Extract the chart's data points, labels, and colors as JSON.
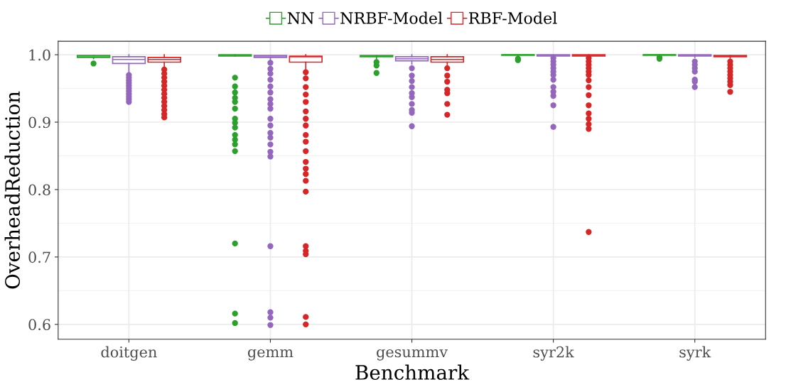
{
  "chart_data": {
    "type": "box",
    "xlabel": "Benchmark",
    "ylabel": "OverheadReduction",
    "categories": [
      "doitgen",
      "gemm",
      "gesummv",
      "syr2k",
      "syrk"
    ],
    "ylim": [
      0.578,
      1.02
    ],
    "yticks": [
      0.6,
      0.7,
      0.8,
      0.9,
      {
        "value": 1,
        "label": "1.0"
      }
    ],
    "grid": true,
    "legend": "top",
    "series": [
      {
        "name": "NN",
        "color": "#2ca02c",
        "boxes": [
          {
            "low": 0.994,
            "q1": 0.996,
            "median": 0.998,
            "q3": 0.999,
            "high": 0.999,
            "outliers": [
              0.987
            ]
          },
          {
            "low": 0.998,
            "q1": 0.998,
            "median": 0.999,
            "q3": 1.0,
            "high": 1.0,
            "outliers": [
              0.966,
              0.953,
              0.944,
              0.936,
              0.93,
              0.92,
              0.905,
              0.899,
              0.892,
              0.881,
              0.874,
              0.867,
              0.857,
              0.72,
              0.616,
              0.602
            ]
          },
          {
            "low": 0.993,
            "q1": 0.997,
            "median": 0.998,
            "q3": 0.999,
            "high": 0.999,
            "outliers": [
              0.989,
              0.984,
              0.973
            ]
          },
          {
            "low": 0.997,
            "q1": 0.999,
            "median": 1.0,
            "q3": 1.0,
            "high": 1.0,
            "outliers": [
              0.994,
              0.992
            ]
          },
          {
            "low": 0.998,
            "q1": 0.999,
            "median": 1.0,
            "q3": 1.0,
            "high": 1.0,
            "outliers": [
              0.996,
              0.994
            ]
          }
        ]
      },
      {
        "name": "NRBF-Model",
        "color": "#9467bd",
        "boxes": [
          {
            "low": 0.973,
            "q1": 0.987,
            "median": 0.993,
            "q3": 0.997,
            "high": 1.0,
            "outliers": [
              0.97,
              0.966,
              0.962,
              0.958,
              0.954,
              0.95,
              0.946,
              0.942,
              0.938,
              0.934,
              0.93
            ]
          },
          {
            "low": 0.992,
            "q1": 0.996,
            "median": 0.998,
            "q3": 0.999,
            "high": 0.999,
            "outliers": [
              0.988,
              0.979,
              0.972,
              0.963,
              0.953,
              0.944,
              0.934,
              0.927,
              0.92,
              0.905,
              0.895,
              0.884,
              0.877,
              0.867,
              0.856,
              0.849,
              0.716,
              0.618,
              0.61,
              0.599
            ]
          },
          {
            "low": 0.986,
            "q1": 0.991,
            "median": 0.994,
            "q3": 0.997,
            "high": 1.0,
            "outliers": [
              0.98,
              0.969,
              0.961,
              0.952,
              0.943,
              0.937,
              0.927,
              0.918,
              0.914,
              0.894
            ]
          },
          {
            "low": 0.996,
            "q1": 0.998,
            "median": 0.999,
            "q3": 1.0,
            "high": 1.0,
            "outliers": [
              0.995,
              0.99,
              0.985,
              0.98,
              0.975,
              0.97,
              0.963,
              0.952,
              0.945,
              0.939,
              0.925,
              0.893
            ]
          },
          {
            "low": 0.996,
            "q1": 0.998,
            "median": 0.999,
            "q3": 1.0,
            "high": 1.0,
            "outliers": [
              0.99,
              0.985,
              0.98,
              0.975,
              0.963,
              0.96,
              0.952
            ]
          }
        ]
      },
      {
        "name": "RBF-Model",
        "color": "#d62728",
        "boxes": [
          {
            "low": 0.98,
            "q1": 0.989,
            "median": 0.993,
            "q3": 0.996,
            "high": 1.0,
            "outliers": [
              0.978,
              0.972,
              0.966,
              0.96,
              0.954,
              0.948,
              0.942,
              0.936,
              0.93,
              0.924,
              0.918,
              0.912,
              0.907
            ]
          },
          {
            "low": 0.978,
            "q1": 0.989,
            "median": 0.997,
            "q3": 0.998,
            "high": 1.0,
            "outliers": [
              0.974,
              0.965,
              0.952,
              0.941,
              0.93,
              0.916,
              0.905,
              0.895,
              0.881,
              0.871,
              0.857,
              0.841,
              0.831,
              0.823,
              0.813,
              0.797,
              0.716,
              0.709,
              0.704,
              0.611,
              0.6
            ]
          },
          {
            "low": 0.984,
            "q1": 0.989,
            "median": 0.993,
            "q3": 0.997,
            "high": 1.0,
            "outliers": [
              0.98,
              0.969,
              0.96,
              0.948,
              0.943,
              0.927,
              0.911
            ]
          },
          {
            "low": 0.996,
            "q1": 0.998,
            "median": 0.999,
            "q3": 1.0,
            "high": 1.0,
            "outliers": [
              0.995,
              0.99,
              0.985,
              0.98,
              0.975,
              0.97,
              0.962,
              0.952,
              0.94,
              0.925,
              0.913,
              0.905,
              0.897,
              0.89,
              0.737
            ]
          },
          {
            "low": 0.995,
            "q1": 0.997,
            "median": 0.998,
            "q3": 0.999,
            "high": 0.999,
            "outliers": [
              0.99,
              0.985,
              0.98,
              0.975,
              0.97,
              0.965,
              0.96,
              0.955,
              0.945
            ]
          }
        ]
      }
    ]
  }
}
